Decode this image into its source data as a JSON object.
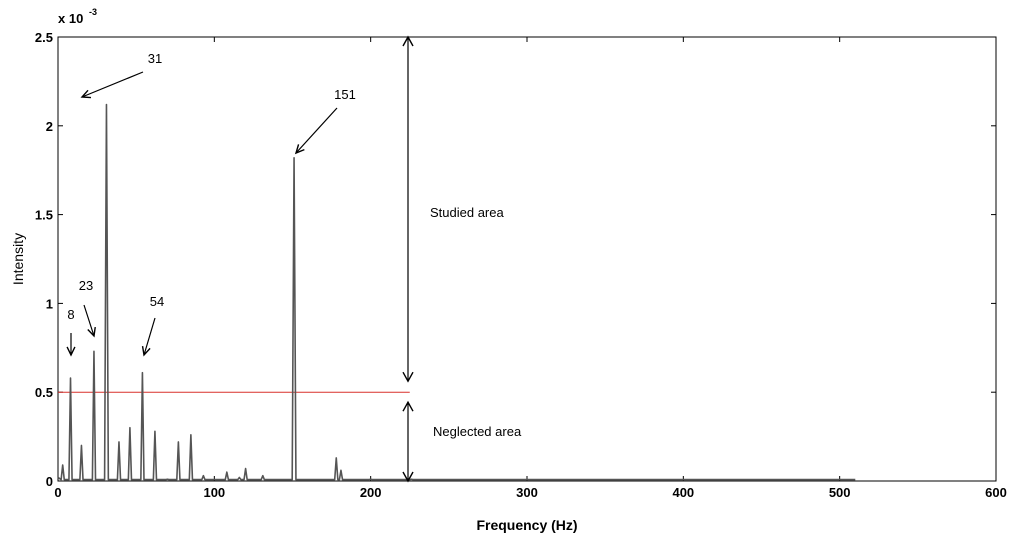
{
  "chart_data": {
    "type": "line",
    "xlabel": "Frequency (Hz)",
    "ylabel": "Intensity",
    "xlim": [
      0,
      600
    ],
    "ylim": [
      0,
      2.5
    ],
    "x_ticks": [
      0,
      100,
      200,
      300,
      400,
      500,
      600
    ],
    "y_ticks": [
      0,
      0.5,
      1,
      1.5,
      2,
      2.5
    ],
    "y_scale_label": "x 10",
    "y_scale_exponent": "-3",
    "grid": false,
    "series": [
      {
        "color": "#555555",
        "peaks": [
          [
            3,
            0.09
          ],
          [
            8,
            0.58
          ],
          [
            15,
            0.2
          ],
          [
            23,
            0.73
          ],
          [
            31,
            2.12
          ],
          [
            39,
            0.22
          ],
          [
            46,
            0.3
          ],
          [
            54,
            0.61
          ],
          [
            62,
            0.28
          ],
          [
            70,
            0.01
          ],
          [
            77,
            0.22
          ],
          [
            85,
            0.26
          ],
          [
            93,
            0.03
          ],
          [
            108,
            0.05
          ],
          [
            116,
            0.02
          ],
          [
            120,
            0.07
          ],
          [
            131,
            0.03
          ],
          [
            151,
            1.82
          ],
          [
            178,
            0.13
          ],
          [
            181,
            0.06
          ],
          [
            200,
            0.01
          ],
          [
            226,
            0.01
          ]
        ],
        "x_end": 510,
        "baseline": 0.008
      }
    ],
    "threshold": {
      "y": 0.5,
      "color": "#d9302c"
    },
    "annotations": [
      {
        "text": "8",
        "x": 8
      },
      {
        "text": "23",
        "x": 23
      },
      {
        "text": "31",
        "x": 31
      },
      {
        "text": "54",
        "x": 54
      },
      {
        "text": "151",
        "x": 151
      }
    ],
    "regions": [
      {
        "label": "Studied area",
        "from": 0.5,
        "to": 2.5
      },
      {
        "label": "Neglected area",
        "from": 0,
        "to": 0.5
      }
    ]
  }
}
